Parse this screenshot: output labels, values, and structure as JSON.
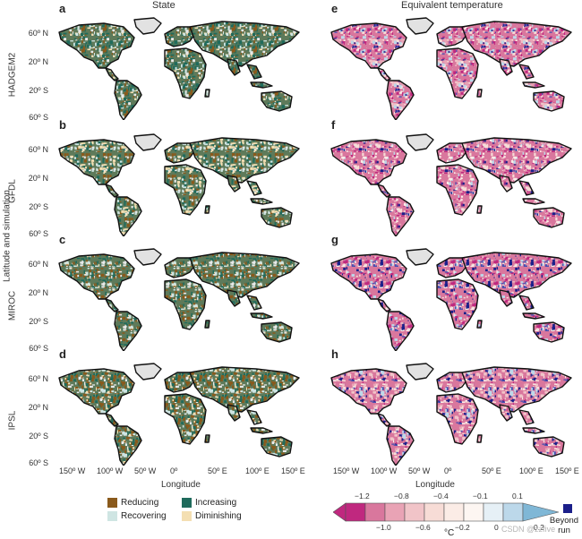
{
  "columns": {
    "left_title": "State",
    "right_title": "Equivalent temperature"
  },
  "panels": [
    "a",
    "b",
    "c",
    "d",
    "e",
    "f",
    "g",
    "h"
  ],
  "models": [
    "HADGEM2",
    "GFDL",
    "MIROC",
    "IPSL"
  ],
  "y_axis_title": "Latitude and simulation",
  "lat_labels": [
    "60º N",
    "20º N",
    "20º S",
    "60º S"
  ],
  "lon_labels": [
    "150º W",
    "100º W",
    "50º W",
    "0º",
    "50º E",
    "100º E",
    "150º E"
  ],
  "x_axis_title": "Longitude",
  "state_legend": [
    {
      "label": "Reducing",
      "color": "#8a5a1c"
    },
    {
      "label": "Increasing",
      "color": "#1f6b5c"
    },
    {
      "label": "Recovering",
      "color": "#cfe5e3"
    },
    {
      "label": "Diminishing",
      "color": "#f4dfb2"
    }
  ],
  "colorbar": {
    "top_ticks": [
      "−1.2",
      "−0.8",
      "−0.4",
      "−0.1",
      "0.1"
    ],
    "bottom_ticks": [
      "−1.0",
      "−0.6",
      "−0.2",
      "0",
      "0.2"
    ],
    "unit": "°C",
    "colors": [
      "#c0287f",
      "#d9779d",
      "#e9a3b5",
      "#f1c4c8",
      "#f7dcd6",
      "#fbece6",
      "#fdf6f2",
      "#e6f0f6",
      "#bcd8ea"
    ],
    "beyond_label": "Beyond run",
    "beyond_color": "#1b1f8a"
  },
  "watermark": "CSDN @zzfive"
}
